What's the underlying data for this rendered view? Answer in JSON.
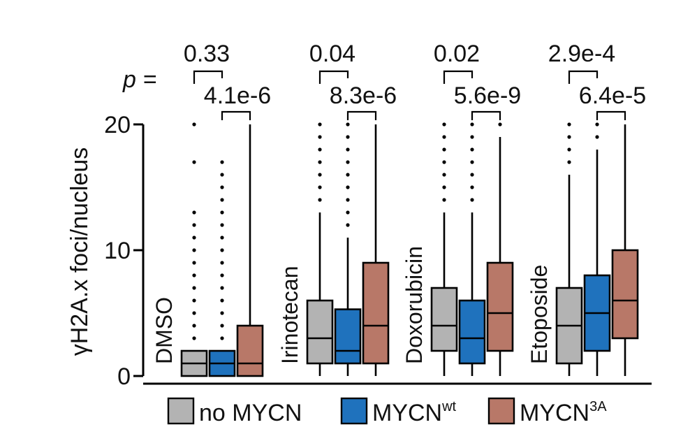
{
  "chart_data": {
    "type": "box",
    "ylabel": "γH2A.x foci/nucleus",
    "ylim": [
      0,
      20
    ],
    "yticks": [
      0,
      10,
      20
    ],
    "p_label": "p =",
    "series": [
      {
        "name": "no MYCN",
        "color": "#b3b3b3"
      },
      {
        "name": "MYCN",
        "superscript": "wt",
        "color": "#1f72bd"
      },
      {
        "name": "MYCN",
        "superscript": "3A",
        "color": "#b87868"
      }
    ],
    "groups": [
      {
        "label": "DMSO",
        "pvalues": [
          "0.33",
          "4.1e-6"
        ],
        "boxes": [
          {
            "q1": 0,
            "median": 1,
            "q3": 2,
            "whisker_low": 0,
            "whisker_high": 2,
            "outliers": [
              3,
              4,
              5,
              6,
              7,
              8,
              9,
              10,
              11,
              12,
              13,
              17,
              20
            ]
          },
          {
            "q1": 0,
            "median": 1,
            "q3": 2,
            "whisker_low": 0,
            "whisker_high": 2,
            "outliers": [
              3,
              4,
              5,
              6,
              7,
              8,
              9,
              10,
              11,
              12,
              13,
              14,
              15,
              16,
              17
            ]
          },
          {
            "q1": 0,
            "median": 1,
            "q3": 4,
            "whisker_low": 0,
            "whisker_high": 20,
            "outliers": []
          }
        ]
      },
      {
        "label": "Irinotecan",
        "pvalues": [
          "0.04",
          "8.3e-6"
        ],
        "boxes": [
          {
            "q1": 1,
            "median": 3,
            "q3": 6,
            "whisker_low": 0,
            "whisker_high": 13,
            "outliers": [
              14,
              15,
              16,
              17,
              18,
              19,
              20
            ]
          },
          {
            "q1": 1,
            "median": 2,
            "q3": 5.3,
            "whisker_low": 0,
            "whisker_high": 11,
            "outliers": [
              12,
              13,
              14,
              15,
              16,
              17,
              18,
              19,
              20
            ]
          },
          {
            "q1": 1,
            "median": 4,
            "q3": 9,
            "whisker_low": 0,
            "whisker_high": 20,
            "outliers": []
          }
        ]
      },
      {
        "label": "Doxorubicin",
        "pvalues": [
          "0.02",
          "5.6e-9"
        ],
        "boxes": [
          {
            "q1": 2,
            "median": 4,
            "q3": 7,
            "whisker_low": 0,
            "whisker_high": 13,
            "outliers": [
              14,
              15,
              16,
              17,
              18,
              19,
              20
            ]
          },
          {
            "q1": 1,
            "median": 3,
            "q3": 6,
            "whisker_low": 0,
            "whisker_high": 13,
            "outliers": [
              14,
              15,
              16,
              17,
              18,
              19,
              20
            ]
          },
          {
            "q1": 2,
            "median": 5,
            "q3": 9,
            "whisker_low": 0,
            "whisker_high": 19,
            "outliers": [
              20
            ]
          }
        ]
      },
      {
        "label": "Etoposide",
        "pvalues": [
          "2.9e-4",
          "6.4e-5"
        ],
        "boxes": [
          {
            "q1": 1,
            "median": 4,
            "q3": 7,
            "whisker_low": 0,
            "whisker_high": 16,
            "outliers": [
              17,
              18,
              19,
              20
            ]
          },
          {
            "q1": 2,
            "median": 5,
            "q3": 8,
            "whisker_low": 0,
            "whisker_high": 18,
            "outliers": [
              19,
              20
            ]
          },
          {
            "q1": 3,
            "median": 6,
            "q3": 10,
            "whisker_low": 0,
            "whisker_high": 20,
            "outliers": []
          }
        ]
      }
    ],
    "legend": {
      "position": "bottom"
    },
    "grid": false
  }
}
